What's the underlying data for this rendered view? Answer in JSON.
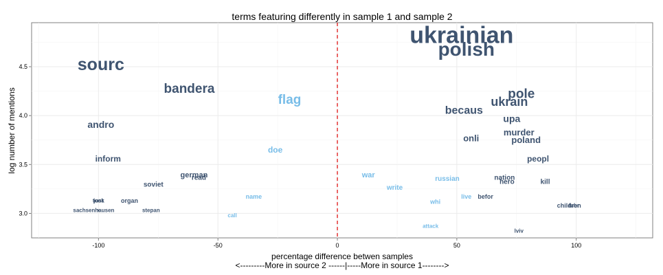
{
  "chart_data": {
    "type": "scatter",
    "title": "terms featuring differently in sample 1 and sample 2",
    "xlabel": "percentage difference betwen samples",
    "xlabel_line2": "<---------More in source 2 ------|-----More in source 1-------->",
    "ylabel": "log number of mentions",
    "xlim": [
      -128,
      132
    ],
    "ylim": [
      2.75,
      4.95
    ],
    "x_ticks": [
      -100,
      -50,
      0,
      50,
      100
    ],
    "y_ticks": [
      3.0,
      3.5,
      4.0,
      4.5
    ],
    "y_tick_labels": [
      "3.0",
      "3.5",
      "4.0",
      "4.5"
    ],
    "reference_line": {
      "x": 0,
      "color": "#dd0000",
      "style": "dashed"
    },
    "grid": true,
    "colors": {
      "dark": "#3f5470",
      "light": "#78bde8"
    },
    "points": [
      {
        "label": "ukrainian",
        "x": 52,
        "y": 4.82,
        "color": "dark",
        "size": 34
      },
      {
        "label": "polish",
        "x": 54,
        "y": 4.68,
        "color": "dark",
        "size": 28
      },
      {
        "label": "sourc",
        "x": -99,
        "y": 4.52,
        "color": "dark",
        "size": 25
      },
      {
        "label": "bandera",
        "x": -62,
        "y": 4.27,
        "color": "dark",
        "size": 19
      },
      {
        "label": "flag",
        "x": -20,
        "y": 4.16,
        "color": "light",
        "size": 19
      },
      {
        "label": "pole",
        "x": 77,
        "y": 4.22,
        "color": "dark",
        "size": 19
      },
      {
        "label": "ukrain",
        "x": 72,
        "y": 4.14,
        "color": "dark",
        "size": 18
      },
      {
        "label": "becaus",
        "x": 53,
        "y": 4.05,
        "color": "dark",
        "size": 16
      },
      {
        "label": "upa",
        "x": 73,
        "y": 3.97,
        "color": "dark",
        "size": 14
      },
      {
        "label": "andro",
        "x": -99,
        "y": 3.91,
        "color": "dark",
        "size": 14
      },
      {
        "label": "murder",
        "x": 76,
        "y": 3.83,
        "color": "dark",
        "size": 13
      },
      {
        "label": "onli",
        "x": 56,
        "y": 3.77,
        "color": "dark",
        "size": 13
      },
      {
        "label": "poland",
        "x": 79,
        "y": 3.75,
        "color": "dark",
        "size": 13
      },
      {
        "label": "doe",
        "x": -26,
        "y": 3.65,
        "color": "light",
        "size": 12
      },
      {
        "label": "inform",
        "x": -96,
        "y": 3.56,
        "color": "dark",
        "size": 12
      },
      {
        "label": "peopl",
        "x": 84,
        "y": 3.56,
        "color": "dark",
        "size": 12
      },
      {
        "label": "german",
        "x": -60,
        "y": 3.39,
        "color": "dark",
        "size": 11
      },
      {
        "label": "war",
        "x": 13,
        "y": 3.39,
        "color": "light",
        "size": 11
      },
      {
        "label": "read",
        "x": -58,
        "y": 3.36,
        "color": "dark",
        "size": 10
      },
      {
        "label": "russian",
        "x": 46,
        "y": 3.35,
        "color": "light",
        "size": 10
      },
      {
        "label": "nation",
        "x": 70,
        "y": 3.36,
        "color": "dark",
        "size": 10
      },
      {
        "label": "hero",
        "x": 71,
        "y": 3.32,
        "color": "dark",
        "size": 10
      },
      {
        "label": "kill",
        "x": 87,
        "y": 3.32,
        "color": "dark",
        "size": 10
      },
      {
        "label": "soviet",
        "x": -77,
        "y": 3.29,
        "color": "dark",
        "size": 10
      },
      {
        "label": "write",
        "x": 24,
        "y": 3.26,
        "color": "light",
        "size": 10
      },
      {
        "label": "befor",
        "x": 62,
        "y": 3.17,
        "color": "dark",
        "size": 9
      },
      {
        "label": "live",
        "x": 54,
        "y": 3.17,
        "color": "light",
        "size": 9
      },
      {
        "label": "name",
        "x": -35,
        "y": 3.17,
        "color": "light",
        "size": 9
      },
      {
        "label": "just",
        "x": -100,
        "y": 3.13,
        "color": "dark",
        "size": 8
      },
      {
        "label": "took",
        "x": -100,
        "y": 3.13,
        "color": "dark",
        "size": 8
      },
      {
        "label": "organ",
        "x": -87,
        "y": 3.13,
        "color": "dark",
        "size": 9
      },
      {
        "label": "whi",
        "x": 41,
        "y": 3.12,
        "color": "light",
        "size": 9
      },
      {
        "label": "children",
        "x": 97,
        "y": 3.08,
        "color": "dark",
        "size": 9
      },
      {
        "label": "fuhr",
        "x": 99,
        "y": 3.08,
        "color": "dark",
        "size": 8
      },
      {
        "label": "sachsenhausen",
        "x": -102,
        "y": 3.03,
        "color": "dark",
        "size": 8
      },
      {
        "label": "x",
        "x": -100,
        "y": 3.03,
        "color": "dark",
        "size": 8
      },
      {
        "label": "stepan",
        "x": -78,
        "y": 3.03,
        "color": "dark",
        "size": 8
      },
      {
        "label": "call",
        "x": -44,
        "y": 2.98,
        "color": "light",
        "size": 8
      },
      {
        "label": "attack",
        "x": 39,
        "y": 2.87,
        "color": "light",
        "size": 8
      },
      {
        "label": "lviv",
        "x": 76,
        "y": 2.82,
        "color": "dark",
        "size": 8
      }
    ]
  }
}
